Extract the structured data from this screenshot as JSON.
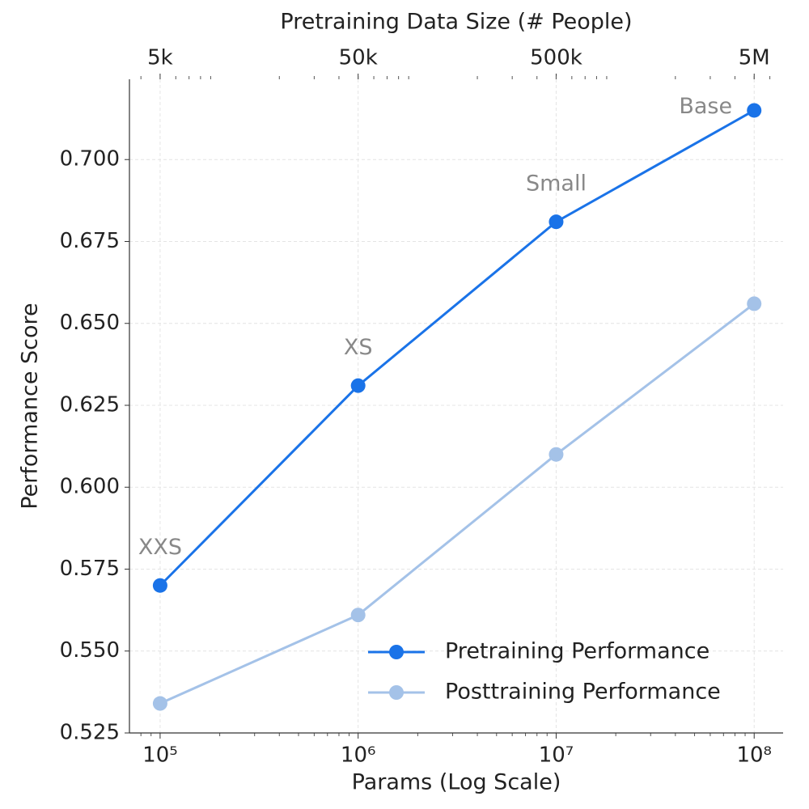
{
  "chart_data": {
    "type": "line",
    "xlabel": "Params (Log Scale)",
    "ylabel": "Performance Score",
    "x2label": "Pretraining Data Size (# People)",
    "x": [
      100000,
      1000000,
      10000000,
      100000000
    ],
    "xscale": "log",
    "xlim": [
      70000,
      140000000
    ],
    "xticks": [
      {
        "value": 100000,
        "label": "10⁵"
      },
      {
        "value": 1000000,
        "label": "10⁶"
      },
      {
        "value": 10000000,
        "label": "10⁷"
      },
      {
        "value": 100000000,
        "label": "10⁸"
      }
    ],
    "x2lim": [
      3500,
      7000000
    ],
    "x2ticks": [
      {
        "value": 5000,
        "label": "5k"
      },
      {
        "value": 50000,
        "label": "50k"
      },
      {
        "value": 500000,
        "label": "500k"
      },
      {
        "value": 5000000,
        "label": "5M"
      }
    ],
    "ylim": [
      0.525,
      0.7245
    ],
    "yticks": [
      {
        "value": 0.525,
        "label": "0.525"
      },
      {
        "value": 0.55,
        "label": "0.550"
      },
      {
        "value": 0.575,
        "label": "0.575"
      },
      {
        "value": 0.6,
        "label": "0.600"
      },
      {
        "value": 0.625,
        "label": "0.625"
      },
      {
        "value": 0.65,
        "label": "0.650"
      },
      {
        "value": 0.675,
        "label": "0.675"
      },
      {
        "value": 0.7,
        "label": "0.700"
      }
    ],
    "grid": true,
    "legend": "lower right",
    "series": [
      {
        "name": "Pretraining Performance",
        "color": "#1a73e8",
        "values": [
          0.57,
          0.631,
          0.681,
          0.715
        ],
        "point_labels": [
          "XXS",
          "XS",
          "Small",
          "Base"
        ]
      },
      {
        "name": "Posttraining Performance",
        "color": "#a4c2e8",
        "values": [
          0.534,
          0.561,
          0.61,
          0.656
        ]
      }
    ]
  }
}
